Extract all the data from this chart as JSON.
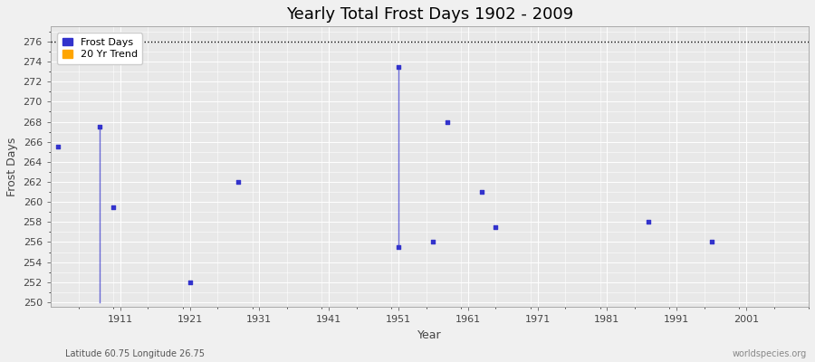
{
  "title": "Yearly Total Frost Days 1902 - 2009",
  "xlabel": "Year",
  "ylabel": "Frost Days",
  "subtitle": "Latitude 60.75 Longitude 26.75",
  "watermark": "worldspecies.org",
  "xlim": [
    1901,
    2010
  ],
  "ylim": [
    249.5,
    277.5
  ],
  "yticks": [
    250,
    252,
    254,
    256,
    258,
    260,
    262,
    264,
    266,
    268,
    270,
    272,
    274,
    276
  ],
  "xticks": [
    1911,
    1921,
    1931,
    1941,
    1951,
    1961,
    1971,
    1981,
    1991,
    2001
  ],
  "hline_y": 276,
  "bg_color": "#f0f0f0",
  "plot_bg_color": "#e8e8e8",
  "grid_color": "#ffffff",
  "frost_color": "#3333cc",
  "frost_days_x": [
    1902,
    1908,
    1910,
    1921,
    1928,
    1956,
    1958,
    1963,
    1965,
    1987,
    1996
  ],
  "frost_days_y": [
    265.5,
    267.5,
    259.5,
    252,
    262,
    256,
    268,
    261,
    257.5,
    258,
    256
  ],
  "vline1_x": 1908,
  "vline1_ytop": 267.5,
  "vline1_ybot": 250.0,
  "vline2_x": 1951,
  "vline2_ytop": 273.5,
  "vline2_ybot": 255.5,
  "vline2_scatter_y": 273.5,
  "vline2_bottom_scatter_y": 255.5,
  "trend_color": "#ffa500",
  "title_fontsize": 13,
  "axis_label_fontsize": 9,
  "tick_fontsize": 8,
  "legend_fontsize": 8,
  "marker_size": 12
}
